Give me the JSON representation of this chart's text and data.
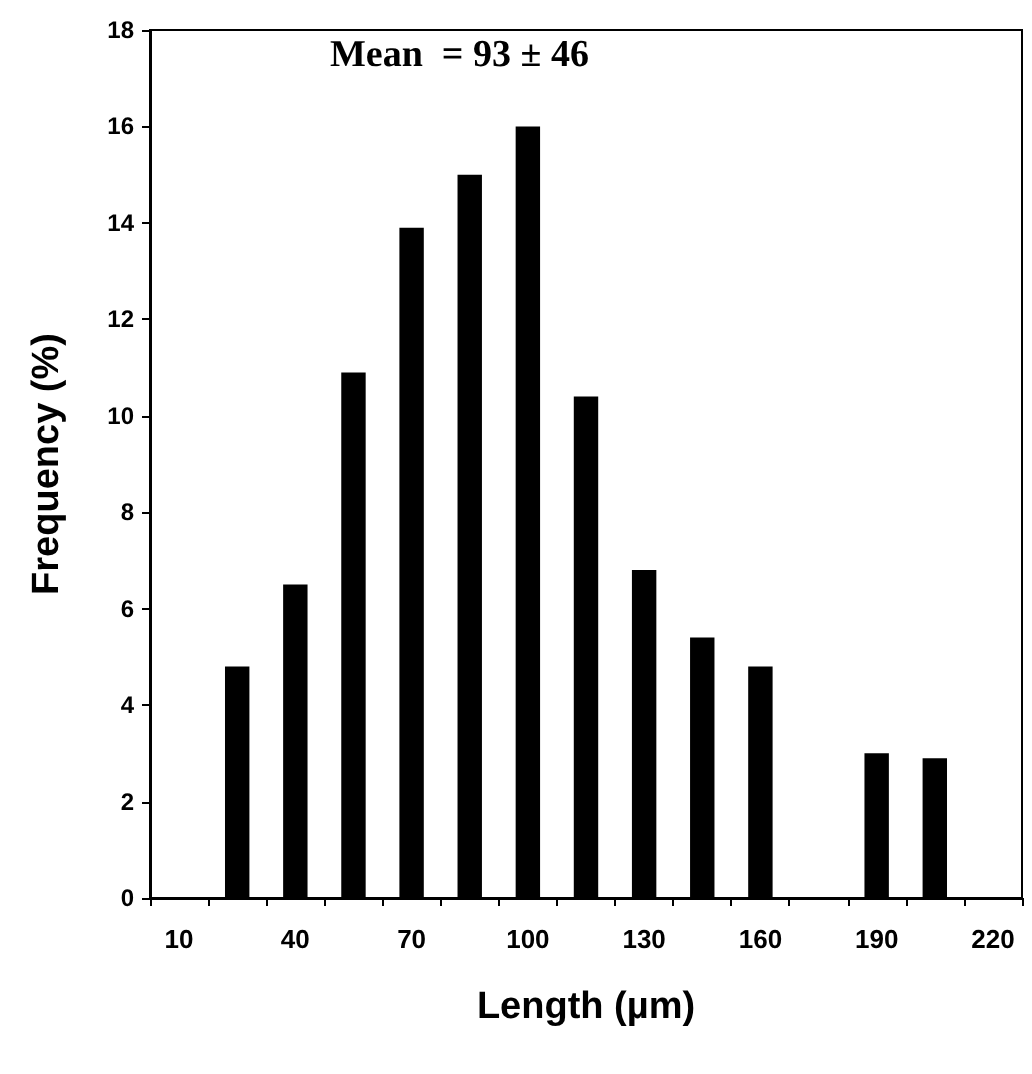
{
  "chart_data": {
    "type": "bar",
    "categories": [
      "10",
      null,
      "40",
      null,
      "70",
      null,
      "100",
      null,
      "130",
      null,
      "160",
      null,
      "190",
      null,
      "220"
    ],
    "values": [
      0,
      4.8,
      6.5,
      10.9,
      13.9,
      15.0,
      16.0,
      10.4,
      6.8,
      5.4,
      4.8,
      0,
      3.0,
      2.9,
      0
    ],
    "color": "#000000",
    "xlabel": "Length (µm)",
    "ylabel": "Frequency (%)",
    "ylim": [
      0,
      18
    ],
    "yticks": [
      0,
      2,
      4,
      6,
      8,
      10,
      12,
      14,
      16,
      18
    ],
    "annotations": [
      "Mean  = 93 ± 46"
    ],
    "grid": false
  }
}
